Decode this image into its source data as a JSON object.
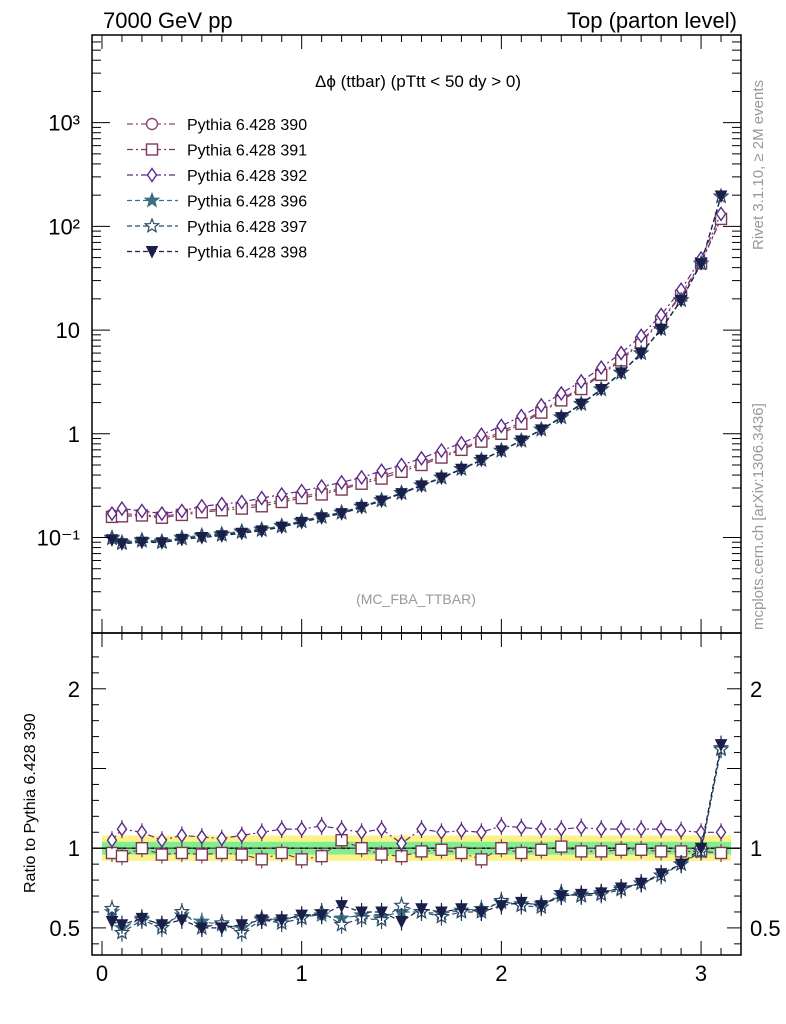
{
  "header": {
    "left": "7000 GeV pp",
    "right": "Top (parton level)"
  },
  "side": {
    "rivet": "Rivet 3.1.10, ≥ 2M events",
    "mcplots": "mcplots.cern.ch [arXiv:1306.3436]"
  },
  "colors": {
    "p390": "#8c4a6e",
    "p391": "#7a3a58",
    "p392": "#5c2a8a",
    "p396": "#3e6e84",
    "p397": "#2a4a64",
    "p398": "#1a1f4a",
    "band_inner": "#7fef8f",
    "band_outer": "#fbf38a"
  },
  "chart_data": [
    {
      "type": "line",
      "title": "Δϕ (ttbar) (pTtt < 50 dy > 0)",
      "annotation": "(MC_FBA_TTBAR)",
      "xlim": [
        -0.05,
        3.2
      ],
      "ylim": [
        0.012,
        7000
      ],
      "yscale": "log",
      "yticks": [
        {
          "v": 0.1,
          "label": "10⁻¹"
        },
        {
          "v": 1,
          "label": "1"
        },
        {
          "v": 10,
          "label": "10"
        },
        {
          "v": 100,
          "label": "10²"
        },
        {
          "v": 1000,
          "label": "10³"
        }
      ],
      "legend_position": "top-left",
      "x": [
        0.05,
        0.1,
        0.2,
        0.3,
        0.4,
        0.5,
        0.6,
        0.7,
        0.8,
        0.9,
        1.0,
        1.1,
        1.2,
        1.3,
        1.4,
        1.5,
        1.6,
        1.7,
        1.8,
        1.9,
        2.0,
        2.1,
        2.2,
        2.3,
        2.4,
        2.5,
        2.6,
        2.7,
        2.8,
        2.9,
        3.0,
        3.1
      ],
      "series": [
        {
          "name": "Pythia 6.428 390",
          "marker": "circle",
          "color_key": "p390",
          "values": [
            0.165,
            0.17,
            0.165,
            0.16,
            0.17,
            0.18,
            0.19,
            0.2,
            0.21,
            0.23,
            0.25,
            0.27,
            0.3,
            0.34,
            0.39,
            0.45,
            0.52,
            0.61,
            0.72,
            0.87,
            1.05,
            1.3,
            1.65,
            2.15,
            2.8,
            3.8,
            5.3,
            7.8,
            12.5,
            22,
            45,
            120
          ]
        },
        {
          "name": "Pythia 6.428 391",
          "marker": "square",
          "color_key": "p391",
          "values": [
            0.158,
            0.16,
            0.163,
            0.155,
            0.165,
            0.175,
            0.183,
            0.19,
            0.2,
            0.22,
            0.24,
            0.26,
            0.29,
            0.33,
            0.37,
            0.43,
            0.5,
            0.59,
            0.7,
            0.84,
            1.0,
            1.25,
            1.6,
            2.1,
            2.7,
            3.7,
            5.1,
            7.6,
            12.2,
            21.5,
            44,
            118
          ]
        },
        {
          "name": "Pythia 6.428 392",
          "marker": "diamond",
          "color_key": "p392",
          "values": [
            0.17,
            0.19,
            0.18,
            0.17,
            0.18,
            0.2,
            0.21,
            0.22,
            0.24,
            0.26,
            0.28,
            0.31,
            0.34,
            0.38,
            0.44,
            0.5,
            0.58,
            0.69,
            0.81,
            0.98,
            1.19,
            1.48,
            1.88,
            2.45,
            3.2,
            4.35,
            6.0,
            8.8,
            14,
            24.5,
            49,
            132
          ]
        },
        {
          "name": "Pythia 6.428 396",
          "marker": "star",
          "color_key": "p396",
          "values": [
            0.1,
            0.09,
            0.095,
            0.092,
            0.1,
            0.105,
            0.108,
            0.115,
            0.12,
            0.13,
            0.145,
            0.16,
            0.175,
            0.2,
            0.23,
            0.27,
            0.32,
            0.38,
            0.46,
            0.56,
            0.69,
            0.86,
            1.1,
            1.45,
            1.95,
            2.7,
            3.9,
            6.0,
            10.3,
            19.5,
            44,
            195
          ]
        },
        {
          "name": "Pythia 6.428 397",
          "marker": "star-open",
          "color_key": "p397",
          "values": [
            0.098,
            0.088,
            0.093,
            0.09,
            0.098,
            0.103,
            0.106,
            0.113,
            0.118,
            0.128,
            0.143,
            0.158,
            0.173,
            0.198,
            0.228,
            0.268,
            0.318,
            0.378,
            0.458,
            0.558,
            0.688,
            0.858,
            1.1,
            1.44,
            1.94,
            2.68,
            3.88,
            5.98,
            10.2,
            19.4,
            43.8,
            194
          ]
        },
        {
          "name": "Pythia 6.428 398",
          "marker": "triangle-down",
          "color_key": "p398",
          "values": [
            0.095,
            0.087,
            0.09,
            0.089,
            0.096,
            0.1,
            0.104,
            0.11,
            0.116,
            0.126,
            0.14,
            0.155,
            0.17,
            0.195,
            0.225,
            0.265,
            0.315,
            0.375,
            0.455,
            0.555,
            0.685,
            0.855,
            1.09,
            1.43,
            1.93,
            2.67,
            3.87,
            5.97,
            10.2,
            19.3,
            43.7,
            196
          ]
        }
      ]
    },
    {
      "type": "line",
      "ylabel": "Ratio to Pythia 6.428 390",
      "xlim": [
        -0.05,
        3.2
      ],
      "ylim": [
        0.33,
        2.35
      ],
      "xticks": [
        0,
        1,
        2,
        3
      ],
      "yticks": [
        0.5,
        1,
        2
      ],
      "x": [
        0.05,
        0.1,
        0.2,
        0.3,
        0.4,
        0.5,
        0.6,
        0.7,
        0.8,
        0.9,
        1.0,
        1.1,
        1.2,
        1.3,
        1.4,
        1.5,
        1.6,
        1.7,
        1.8,
        1.9,
        2.0,
        2.1,
        2.2,
        2.3,
        2.4,
        2.5,
        2.6,
        2.7,
        2.8,
        2.9,
        3.0,
        3.1
      ],
      "band_inner": [
        0.96,
        1.04
      ],
      "band_outer": [
        0.92,
        1.08
      ],
      "series": [
        {
          "name": "Pythia 6.428 391",
          "marker": "square",
          "color_key": "p391",
          "values": [
            0.97,
            0.95,
            1.0,
            0.96,
            0.97,
            0.96,
            0.97,
            0.96,
            0.93,
            0.97,
            0.93,
            0.95,
            1.05,
            1.0,
            0.96,
            0.95,
            0.98,
            0.99,
            0.97,
            0.93,
            1.0,
            0.97,
            0.99,
            1.01,
            0.98,
            0.98,
            0.99,
            0.99,
            0.98,
            0.98,
            0.98,
            0.97
          ]
        },
        {
          "name": "Pythia 6.428 392",
          "marker": "diamond",
          "color_key": "p392",
          "values": [
            1.05,
            1.12,
            1.1,
            1.05,
            1.08,
            1.07,
            1.06,
            1.08,
            1.1,
            1.12,
            1.12,
            1.14,
            1.12,
            1.1,
            1.12,
            1.03,
            1.12,
            1.1,
            1.11,
            1.1,
            1.14,
            1.13,
            1.12,
            1.12,
            1.13,
            1.12,
            1.12,
            1.12,
            1.12,
            1.11,
            1.1,
            1.1
          ]
        },
        {
          "name": "Pythia 6.428 396",
          "marker": "star",
          "color_key": "p396",
          "values": [
            0.6,
            0.5,
            0.56,
            0.52,
            0.58,
            0.54,
            0.52,
            0.5,
            0.56,
            0.55,
            0.57,
            0.58,
            0.56,
            0.58,
            0.57,
            0.6,
            0.6,
            0.59,
            0.61,
            0.62,
            0.66,
            0.65,
            0.65,
            0.7,
            0.71,
            0.72,
            0.75,
            0.78,
            0.83,
            0.9,
            0.98,
            1.63
          ]
        },
        {
          "name": "Pythia 6.428 397",
          "marker": "star-open",
          "color_key": "p397",
          "values": [
            0.62,
            0.47,
            0.55,
            0.5,
            0.6,
            0.5,
            0.53,
            0.47,
            0.55,
            0.53,
            0.56,
            0.6,
            0.52,
            0.56,
            0.55,
            0.64,
            0.6,
            0.57,
            0.6,
            0.6,
            0.67,
            0.64,
            0.63,
            0.72,
            0.7,
            0.71,
            0.74,
            0.78,
            0.83,
            0.9,
            0.98,
            1.62
          ]
        },
        {
          "name": "Pythia 6.428 398",
          "marker": "triangle-down",
          "color_key": "p398",
          "values": [
            0.54,
            0.52,
            0.56,
            0.52,
            0.55,
            0.5,
            0.5,
            0.52,
            0.55,
            0.55,
            0.58,
            0.58,
            0.64,
            0.6,
            0.6,
            0.54,
            0.62,
            0.6,
            0.62,
            0.6,
            0.64,
            0.66,
            0.64,
            0.7,
            0.71,
            0.72,
            0.75,
            0.78,
            0.84,
            0.9,
            1.0,
            1.65
          ]
        }
      ]
    }
  ]
}
